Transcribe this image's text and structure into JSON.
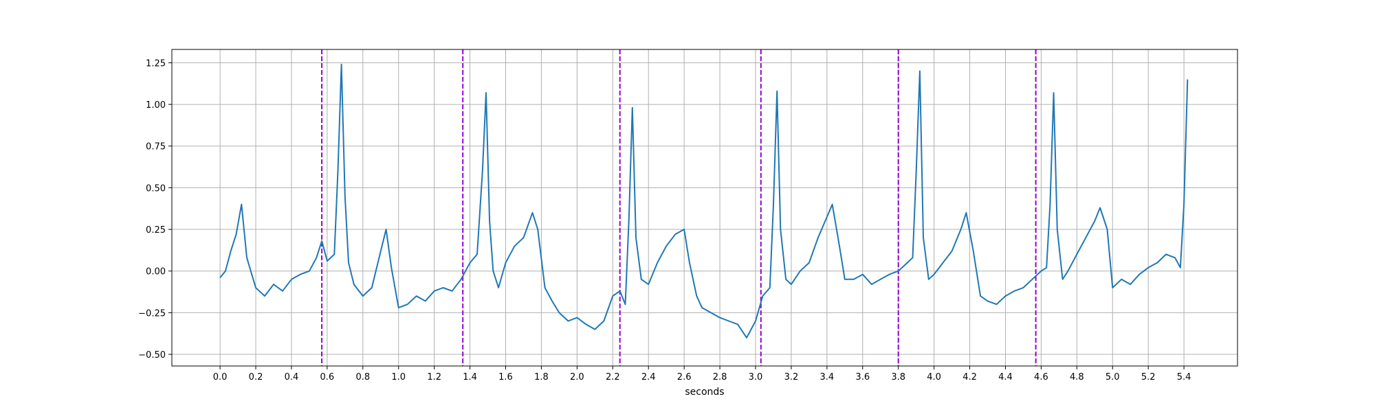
{
  "chart_data": {
    "type": "line",
    "title": "",
    "xlabel": "seconds",
    "ylabel": "",
    "xlim": [
      -0.27,
      5.7
    ],
    "ylim": [
      -0.57,
      1.33
    ],
    "xticks": [
      0.0,
      0.2,
      0.4,
      0.6,
      0.8,
      1.0,
      1.2,
      1.4,
      1.6,
      1.8,
      2.0,
      2.2,
      2.4,
      2.6,
      2.8,
      3.0,
      3.2,
      3.4,
      3.6,
      3.8,
      4.0,
      4.2,
      4.4,
      4.6,
      4.8,
      5.0,
      5.2,
      5.4
    ],
    "xtick_labels": [
      "0.0",
      "0.2",
      "0.4",
      "0.6",
      "0.8",
      "1.0",
      "1.2",
      "1.4",
      "1.6",
      "1.8",
      "2.0",
      "2.2",
      "2.4",
      "2.6",
      "2.8",
      "3.0",
      "3.2",
      "3.4",
      "3.6",
      "3.8",
      "4.0",
      "4.2",
      "4.4",
      "4.6",
      "4.8",
      "5.0",
      "5.2",
      "5.4"
    ],
    "yticks": [
      -0.5,
      -0.25,
      0.0,
      0.25,
      0.5,
      0.75,
      1.0,
      1.25
    ],
    "ytick_labels": [
      "−0.50",
      "−0.25",
      "0.00",
      "0.25",
      "0.50",
      "0.75",
      "1.00",
      "1.25"
    ],
    "grid": true,
    "colors": {
      "signal": "#1f77b4",
      "markers": "#9400d3",
      "grid": "#b0b0b0"
    },
    "series": [
      {
        "x": [
          0.0,
          0.03,
          0.06,
          0.09,
          0.12,
          0.15,
          0.2,
          0.25,
          0.3,
          0.35,
          0.4,
          0.45,
          0.5,
          0.54,
          0.57,
          0.6,
          0.64,
          0.66,
          0.68,
          0.7,
          0.72,
          0.75,
          0.8,
          0.85,
          0.9,
          0.93,
          0.96,
          1.0,
          1.05,
          1.1,
          1.15,
          1.2,
          1.25,
          1.3,
          1.35,
          1.4,
          1.44,
          1.47,
          1.49,
          1.51,
          1.53,
          1.56,
          1.6,
          1.65,
          1.7,
          1.75,
          1.78,
          1.82,
          1.86,
          1.9,
          1.95,
          2.0,
          2.05,
          2.1,
          2.15,
          2.2,
          2.24,
          2.27,
          2.29,
          2.31,
          2.33,
          2.36,
          2.4,
          2.45,
          2.5,
          2.55,
          2.6,
          2.63,
          2.67,
          2.7,
          2.75,
          2.8,
          2.85,
          2.9,
          2.95,
          3.0,
          3.04,
          3.08,
          3.1,
          3.12,
          3.14,
          3.17,
          3.2,
          3.25,
          3.3,
          3.35,
          3.39,
          3.43,
          3.47,
          3.5,
          3.55,
          3.6,
          3.65,
          3.7,
          3.75,
          3.8,
          3.85,
          3.88,
          3.9,
          3.92,
          3.94,
          3.97,
          4.0,
          4.05,
          4.1,
          4.15,
          4.18,
          4.22,
          4.26,
          4.3,
          4.35,
          4.4,
          4.45,
          4.5,
          4.55,
          4.6,
          4.63,
          4.65,
          4.67,
          4.69,
          4.72,
          4.75,
          4.8,
          4.85,
          4.9,
          4.93,
          4.97,
          5.0,
          5.05,
          5.1,
          5.15,
          5.2,
          5.25,
          5.3,
          5.35,
          5.38,
          5.4,
          5.42
        ],
        "y": [
          -0.04,
          0.0,
          0.12,
          0.22,
          0.4,
          0.08,
          -0.1,
          -0.15,
          -0.08,
          -0.12,
          -0.05,
          -0.02,
          0.0,
          0.08,
          0.18,
          0.06,
          0.1,
          0.6,
          1.24,
          0.45,
          0.05,
          -0.08,
          -0.15,
          -0.1,
          0.12,
          0.25,
          0.02,
          -0.22,
          -0.2,
          -0.15,
          -0.18,
          -0.12,
          -0.1,
          -0.12,
          -0.05,
          0.05,
          0.1,
          0.6,
          1.07,
          0.3,
          0.0,
          -0.1,
          0.05,
          0.15,
          0.2,
          0.35,
          0.25,
          -0.1,
          -0.18,
          -0.25,
          -0.3,
          -0.28,
          -0.32,
          -0.35,
          -0.3,
          -0.15,
          -0.12,
          -0.2,
          0.3,
          0.98,
          0.2,
          -0.05,
          -0.08,
          0.05,
          0.15,
          0.22,
          0.25,
          0.05,
          -0.15,
          -0.22,
          -0.25,
          -0.28,
          -0.3,
          -0.32,
          -0.4,
          -0.3,
          -0.15,
          -0.1,
          0.4,
          1.08,
          0.25,
          -0.05,
          -0.08,
          0.0,
          0.05,
          0.2,
          0.3,
          0.4,
          0.15,
          -0.05,
          -0.05,
          -0.02,
          -0.08,
          -0.05,
          -0.02,
          0.0,
          0.05,
          0.08,
          0.6,
          1.2,
          0.2,
          -0.05,
          -0.02,
          0.05,
          0.12,
          0.25,
          0.35,
          0.12,
          -0.15,
          -0.18,
          -0.2,
          -0.15,
          -0.12,
          -0.1,
          -0.05,
          0.0,
          0.02,
          0.4,
          1.07,
          0.25,
          -0.05,
          0.0,
          0.1,
          0.2,
          0.3,
          0.38,
          0.25,
          -0.1,
          -0.05,
          -0.08,
          -0.02,
          0.02,
          0.05,
          0.1,
          0.08,
          0.02,
          0.4,
          1.15
        ]
      }
    ],
    "vlines": [
      0.57,
      1.36,
      2.24,
      3.03,
      3.8,
      4.57
    ]
  }
}
